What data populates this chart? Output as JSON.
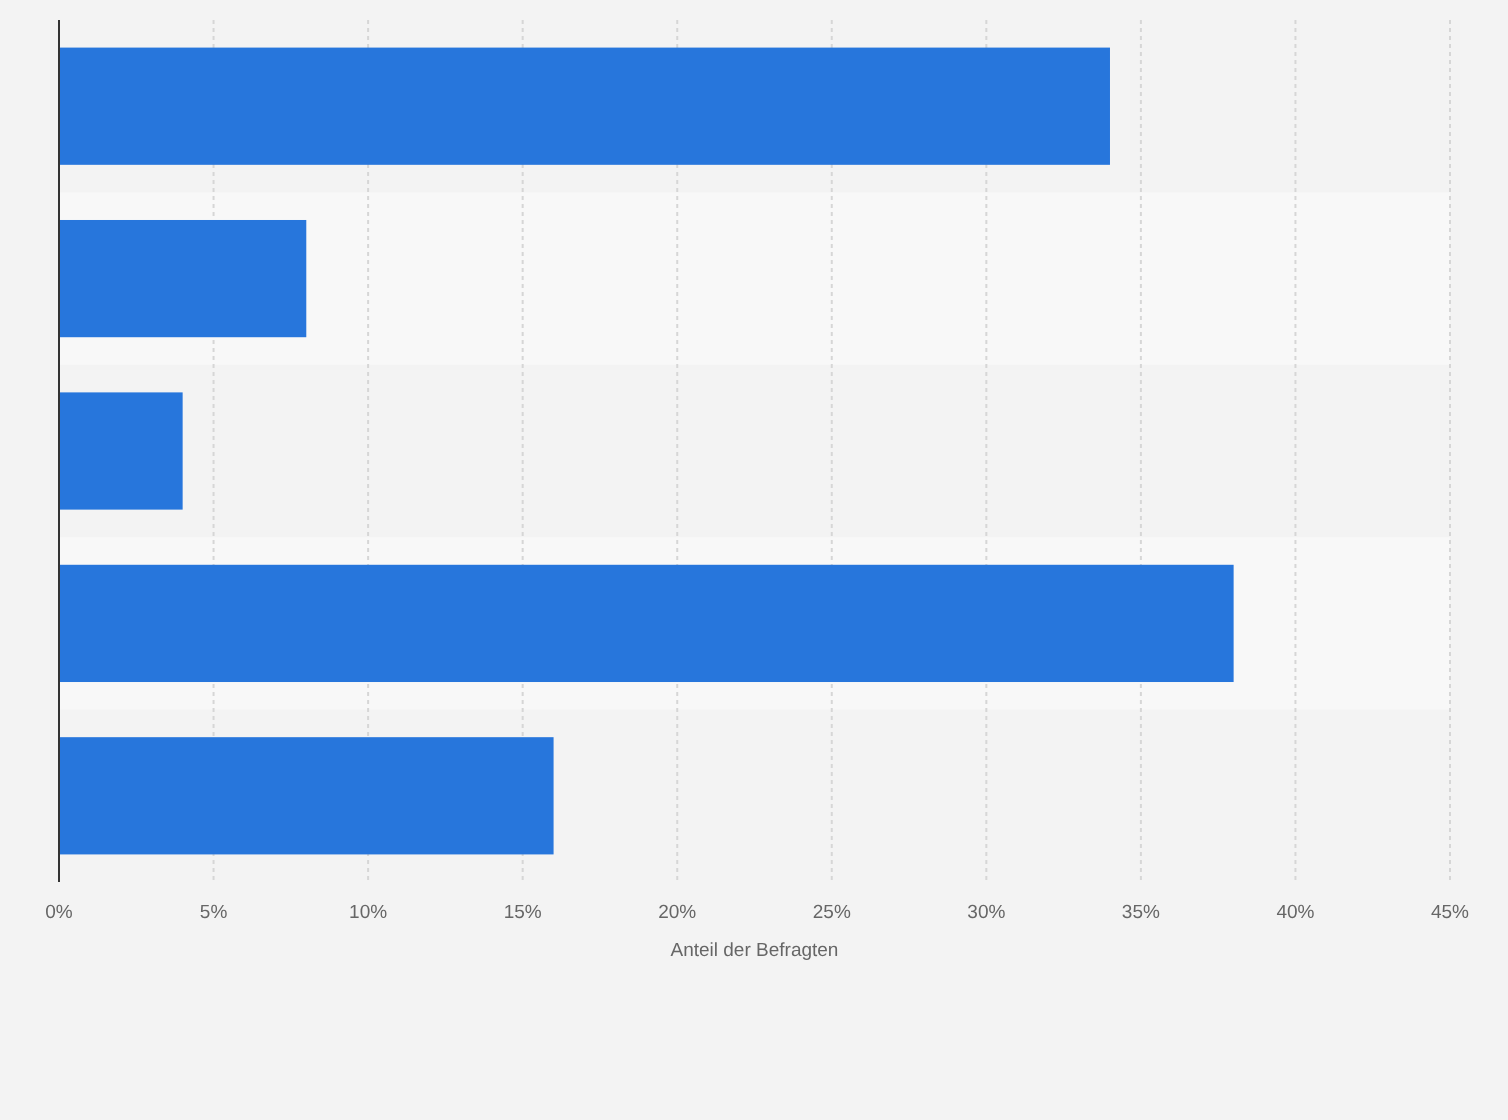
{
  "chart_data": {
    "type": "bar",
    "orientation": "horizontal",
    "categories": [
      null,
      null,
      null,
      null,
      null
    ],
    "values": [
      34,
      8,
      4,
      38,
      16
    ],
    "color": "#2776dc",
    "xlabel": "Anteil der Befragten",
    "xlim": [
      0,
      45
    ],
    "xticks": [
      {
        "value": 0,
        "label": "0%"
      },
      {
        "value": 5,
        "label": "5%"
      },
      {
        "value": 10,
        "label": "10%"
      },
      {
        "value": 15,
        "label": "15%"
      },
      {
        "value": 20,
        "label": "20%"
      },
      {
        "value": 25,
        "label": "25%"
      },
      {
        "value": 30,
        "label": "30%"
      },
      {
        "value": 35,
        "label": "35%"
      },
      {
        "value": 40,
        "label": "40%"
      },
      {
        "value": 45,
        "label": "45%"
      }
    ],
    "grid": "x"
  }
}
